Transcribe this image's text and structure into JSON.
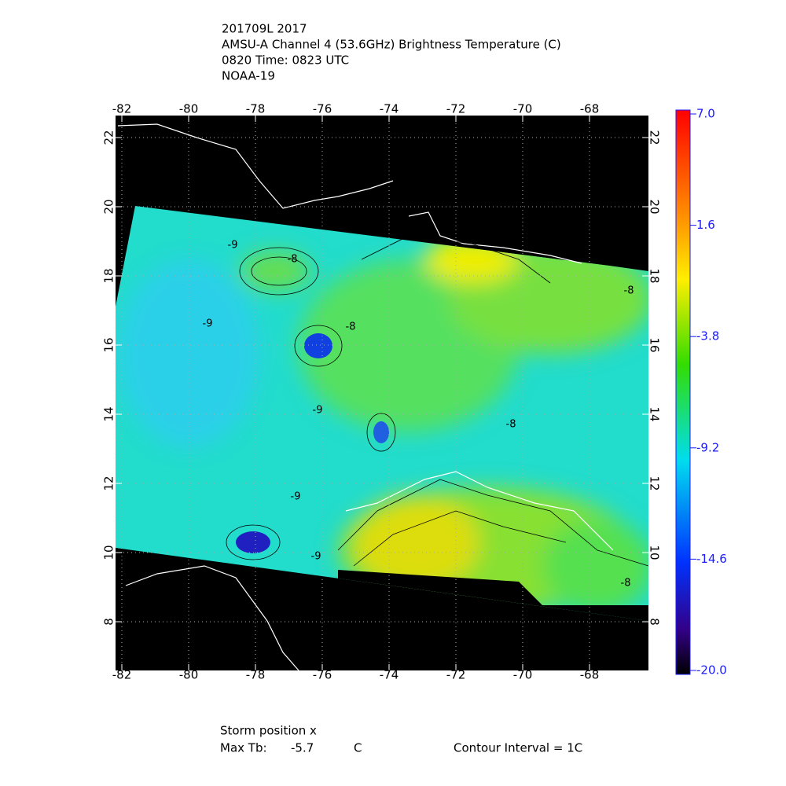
{
  "header": {
    "lines": [
      "201709L 2017",
      "AMSU-A Channel 4 (53.6GHz) Brightness Temperature (C)",
      "0820 Time: 0823 UTC",
      "NOAA-19"
    ]
  },
  "map": {
    "lon_ticks": [
      -82,
      -80,
      -78,
      -76,
      -74,
      -72,
      -70,
      -68
    ],
    "lat_ticks": [
      8,
      10,
      12,
      14,
      16,
      18,
      20,
      22
    ],
    "contour_labels": [
      "-9",
      "-8",
      "-9",
      "-8",
      "-9",
      "-8",
      "-9",
      "-8",
      "-9",
      "-8"
    ]
  },
  "colorbar": {
    "labels": [
      "7.0",
      "1.6",
      "-3.8",
      "-9.2",
      "-14.6",
      "-20.0"
    ]
  },
  "footer": {
    "storm_position": "Storm position x",
    "max_tb_label": "Max Tb:",
    "max_tb_value": "-5.7",
    "max_tb_unit": "C",
    "contour_interval": "Contour Interval = 1C"
  }
}
